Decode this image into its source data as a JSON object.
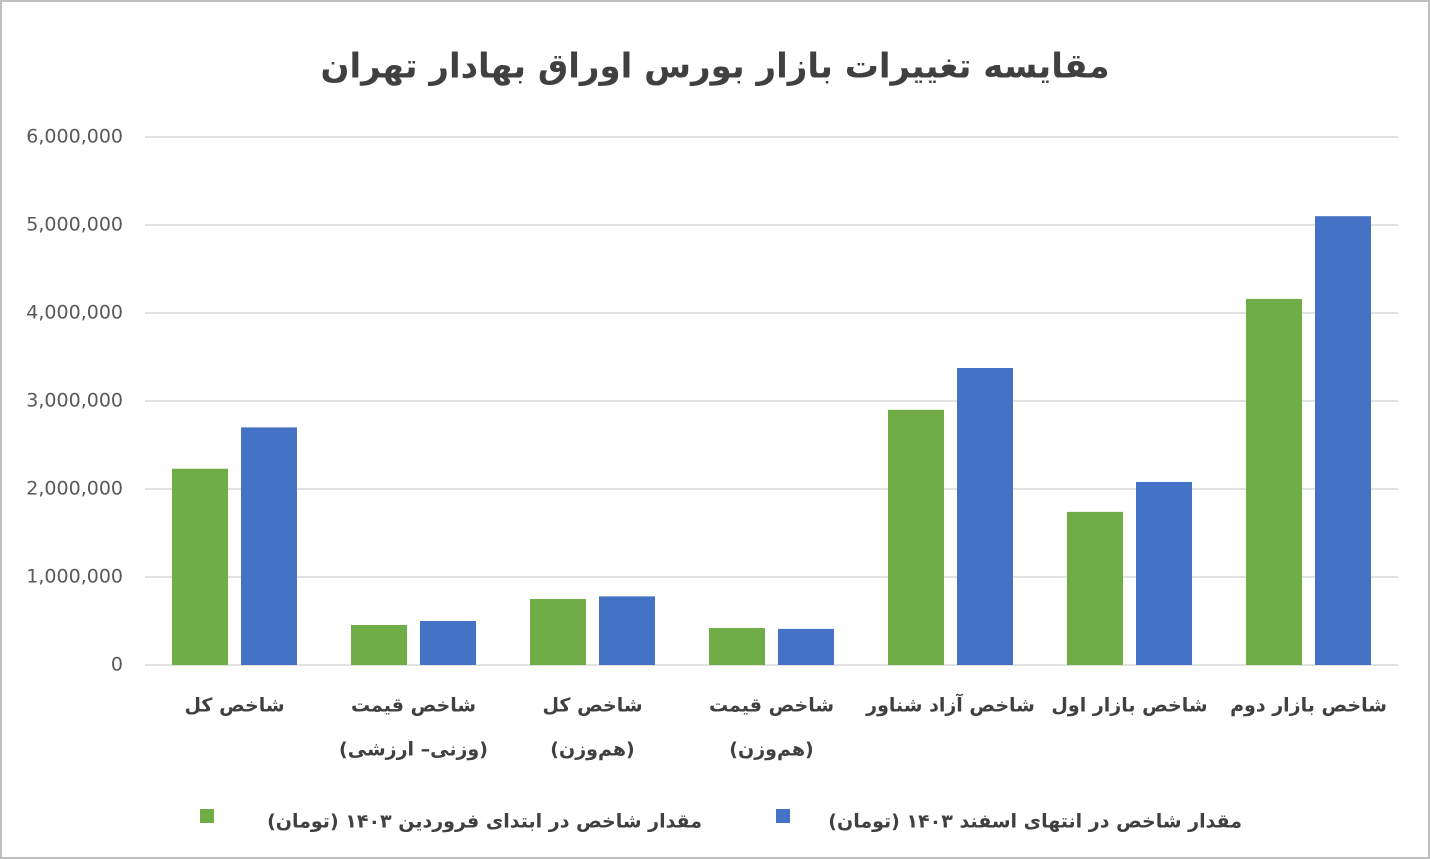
{
  "chart_data": {
    "type": "bar",
    "title": "مقایسه تغییرات بازار بورس اوراق بهادار تهران",
    "categories": [
      [
        "شاخص کل"
      ],
      [
        "شاخص قیمت",
        "(وزنی– ارزشی)"
      ],
      [
        "شاخص کل",
        "(هم‌وزن)"
      ],
      [
        "شاخص قیمت",
        "(هم‌وزن)"
      ],
      [
        "شاخص آزاد شناور"
      ],
      [
        "شاخص بازار اول"
      ],
      [
        "شاخص بازار دوم"
      ]
    ],
    "series": [
      {
        "name": "مقدار شاخص در ابتدای فروردین ۱۴۰۳ (تومان)",
        "color": "#70ad47",
        "values": [
          2230000,
          455000,
          750000,
          420000,
          2900000,
          1740000,
          4160000
        ]
      },
      {
        "name": "مقدار شاخص در انتهای اسفند ۱۴۰۳ (تومان)",
        "color": "#4472c4",
        "values": [
          2700000,
          500000,
          780000,
          410000,
          3375000,
          2080000,
          5100000
        ]
      }
    ],
    "ylim": [
      0,
      6000000
    ],
    "yticks": [
      0,
      {
        "value": 1000000,
        "label": "1,000,000"
      },
      {
        "value": 2000000,
        "label": "2,000,000"
      },
      {
        "value": 3000000,
        "label": "3,000,000"
      },
      {
        "value": 4000000,
        "label": "4,000,000"
      },
      {
        "value": 5000000,
        "label": "5,000,000"
      },
      {
        "value": 6000000,
        "label": "6,000,000"
      }
    ],
    "grid": true
  }
}
